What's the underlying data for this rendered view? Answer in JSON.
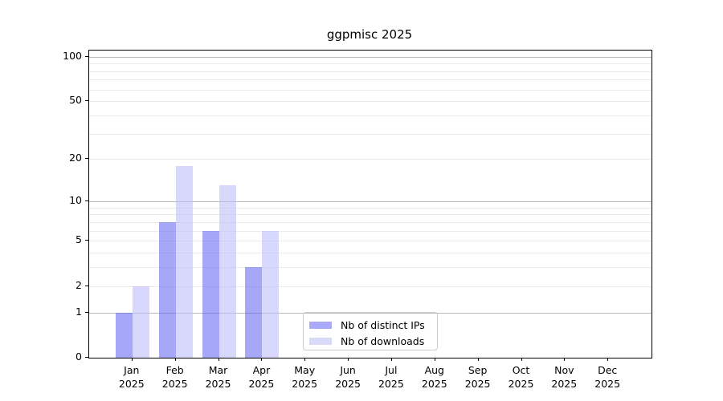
{
  "title": "ggpmisc 2025",
  "chart_data": {
    "type": "bar",
    "title": "ggpmisc 2025",
    "categories": [
      {
        "month": "Jan",
        "year": "2025"
      },
      {
        "month": "Feb",
        "year": "2025"
      },
      {
        "month": "Mar",
        "year": "2025"
      },
      {
        "month": "Apr",
        "year": "2025"
      },
      {
        "month": "May",
        "year": "2025"
      },
      {
        "month": "Jun",
        "year": "2025"
      },
      {
        "month": "Jul",
        "year": "2025"
      },
      {
        "month": "Aug",
        "year": "2025"
      },
      {
        "month": "Sep",
        "year": "2025"
      },
      {
        "month": "Oct",
        "year": "2025"
      },
      {
        "month": "Nov",
        "year": "2025"
      },
      {
        "month": "Dec",
        "year": "2025"
      }
    ],
    "series": [
      {
        "name": "Nb of distinct IPs",
        "values": [
          1,
          7,
          6,
          3,
          0,
          0,
          0,
          0,
          0,
          0,
          0,
          0
        ],
        "fill_color": "rgba(95,95,240,0.55)",
        "legend_color": "#aaaaf8"
      },
      {
        "name": "Nb of downloads",
        "values": [
          2,
          18,
          13,
          6,
          0,
          0,
          0,
          0,
          0,
          0,
          0,
          0
        ],
        "fill_color": "rgba(190,190,250,0.6)",
        "legend_color": "#d9d9f8"
      }
    ],
    "xlabel": "",
    "ylabel": "",
    "yscale": "log1p",
    "ylim": [
      0,
      110
    ],
    "y_tick_values": [
      0,
      1,
      2,
      5,
      10,
      20,
      50,
      100
    ],
    "y_major_gridlines": [
      1,
      10,
      100
    ],
    "y_minor_gridlines": [
      2,
      3,
      4,
      5,
      6,
      7,
      8,
      9,
      20,
      30,
      40,
      50,
      60,
      70,
      80,
      90
    ],
    "grid": "horizontal",
    "legend_position": "lower-center"
  },
  "legend": {
    "items": [
      {
        "label": "Nb of distinct IPs"
      },
      {
        "label": "Nb of downloads"
      }
    ]
  }
}
